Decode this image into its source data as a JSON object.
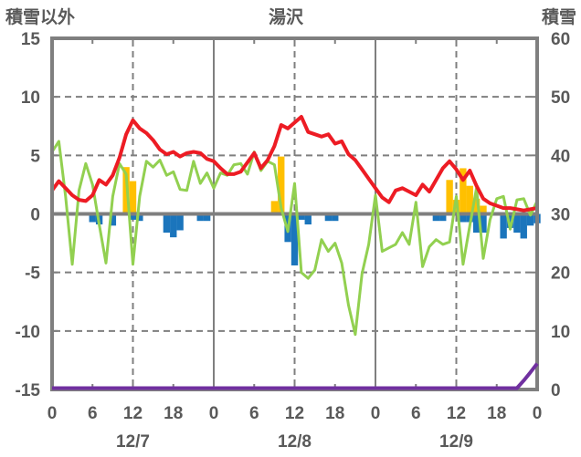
{
  "chart_data": {
    "type": "composite",
    "title": "湯沢",
    "x_axis": {
      "hours_span": 72,
      "hour_tick_labels": [
        "0",
        "6",
        "12",
        "18",
        "0",
        "6",
        "12",
        "18",
        "0",
        "6",
        "12",
        "18",
        "0"
      ],
      "hour_tick_positions": [
        0,
        6,
        12,
        18,
        24,
        30,
        36,
        42,
        48,
        54,
        60,
        66,
        72
      ],
      "minor_tick_step": 6,
      "date_labels": [
        {
          "label": "12/7",
          "hour": 12
        },
        {
          "label": "12/8",
          "hour": 36
        },
        {
          "label": "12/9",
          "hour": 60
        }
      ],
      "dashed_gridline_hours": [
        12,
        36,
        60
      ],
      "solid_gridline_hours": [
        24,
        48
      ]
    },
    "left_axis": {
      "title": "積雪以外",
      "min": -15,
      "max": 15,
      "tick_values": [
        15,
        10,
        5,
        0,
        -5,
        -10,
        -15
      ],
      "gridline_values": [
        10,
        5,
        -5,
        -10
      ],
      "zero_line": true
    },
    "right_axis": {
      "title": "積雪",
      "min": 0,
      "max": 60,
      "tick_values": [
        60,
        50,
        40,
        30,
        20,
        10,
        0
      ]
    },
    "grid_on": true,
    "legend": "none",
    "series": [
      {
        "name": "red-line",
        "type": "line",
        "axis": "left",
        "color": "#ED1C24",
        "width": 4,
        "values": [
          2.0,
          2.8,
          2.2,
          1.6,
          1.2,
          1.1,
          1.6,
          2.9,
          2.5,
          3.3,
          4.8,
          6.8,
          8.0,
          7.3,
          6.9,
          6.3,
          5.5,
          5.1,
          5.3,
          4.9,
          5.2,
          5.3,
          5.2,
          4.7,
          4.5,
          3.9,
          3.4,
          3.4,
          3.6,
          4.4,
          5.2,
          3.9,
          4.6,
          5.8,
          7.6,
          7.3,
          7.8,
          8.3,
          7.0,
          6.8,
          6.6,
          6.8,
          6.0,
          6.2,
          5.1,
          4.6,
          3.8,
          3.0,
          2.2,
          1.4,
          1.0,
          2.0,
          2.2,
          1.9,
          1.6,
          2.5,
          1.9,
          2.9,
          3.9,
          4.5,
          3.8,
          2.9,
          3.7,
          2.4,
          1.3,
          0.9,
          0.7,
          0.5,
          0.5,
          0.4,
          0.3,
          0.4,
          0.5
        ]
      },
      {
        "name": "green-line",
        "type": "line",
        "axis": "left",
        "color": "#92D050",
        "width": 3,
        "values": [
          5.3,
          6.2,
          1.5,
          -4.3,
          2.0,
          4.3,
          2.5,
          -0.9,
          -4.2,
          1.5,
          4.3,
          3.4,
          -4.3,
          1.5,
          4.5,
          4.0,
          4.6,
          3.3,
          3.6,
          2.1,
          2.0,
          4.5,
          2.6,
          3.5,
          2.2,
          3.5,
          3.3,
          4.2,
          4.3,
          3.4,
          5.3,
          3.7,
          4.5,
          4.2,
          0.5,
          -1.5,
          2.6,
          -5.0,
          -5.5,
          -4.8,
          -2.2,
          -3.2,
          -2.5,
          -4.2,
          -7.8,
          -10.3,
          -5.1,
          -2.6,
          1.6,
          -3.2,
          -2.9,
          -2.6,
          -1.6,
          -2.6,
          1.0,
          -4.5,
          -2.8,
          -2.2,
          -2.6,
          -2.4,
          1.5,
          -4.3,
          -1.0,
          2.2,
          -3.8,
          -0.5,
          1.3,
          1.5,
          -1.3,
          1.2,
          1.3,
          -0.1,
          1.1
        ]
      },
      {
        "name": "orange-bars",
        "type": "bar",
        "axis": "left",
        "color": "#FFC000",
        "points": [
          [
            11,
            4.0
          ],
          [
            12,
            2.8
          ],
          [
            33,
            1.1
          ],
          [
            34,
            4.9
          ],
          [
            59,
            2.9
          ],
          [
            60,
            1.2
          ],
          [
            61,
            3.9
          ],
          [
            62,
            2.4
          ],
          [
            63,
            1.3
          ],
          [
            64,
            0.7
          ]
        ]
      },
      {
        "name": "blue-bars",
        "type": "bar",
        "axis": "left",
        "color": "#1B75BC",
        "points": [
          [
            6,
            -0.7
          ],
          [
            7,
            -0.9
          ],
          [
            9,
            -1.0
          ],
          [
            12,
            -0.5
          ],
          [
            13,
            -0.6
          ],
          [
            17,
            -1.6
          ],
          [
            18,
            -2.0
          ],
          [
            19,
            -1.4
          ],
          [
            22,
            -0.6
          ],
          [
            23,
            -0.6
          ],
          [
            35,
            -2.4
          ],
          [
            36,
            -4.4
          ],
          [
            37,
            -0.5
          ],
          [
            38,
            -0.9
          ],
          [
            41,
            -0.6
          ],
          [
            42,
            -0.6
          ],
          [
            57,
            -0.6
          ],
          [
            58,
            -0.6
          ],
          [
            61,
            -0.7
          ],
          [
            62,
            -0.7
          ],
          [
            63,
            -1.6
          ],
          [
            64,
            -1.6
          ],
          [
            67,
            -2.1
          ],
          [
            68,
            -1.2
          ],
          [
            69,
            -1.6
          ],
          [
            70,
            -2.1
          ],
          [
            71,
            -1.0
          ],
          [
            72,
            -0.8
          ]
        ]
      },
      {
        "name": "purple-line",
        "type": "line",
        "axis": "right",
        "color": "#7030A0",
        "width": 4,
        "points": [
          [
            0,
            0
          ],
          [
            69,
            0
          ],
          [
            70,
            1.3
          ],
          [
            71,
            2.7
          ],
          [
            72,
            4.2
          ]
        ]
      }
    ],
    "frame_color": "#7F7F7F",
    "grid_color": "#7F7F7F",
    "text_color": "#595959"
  }
}
